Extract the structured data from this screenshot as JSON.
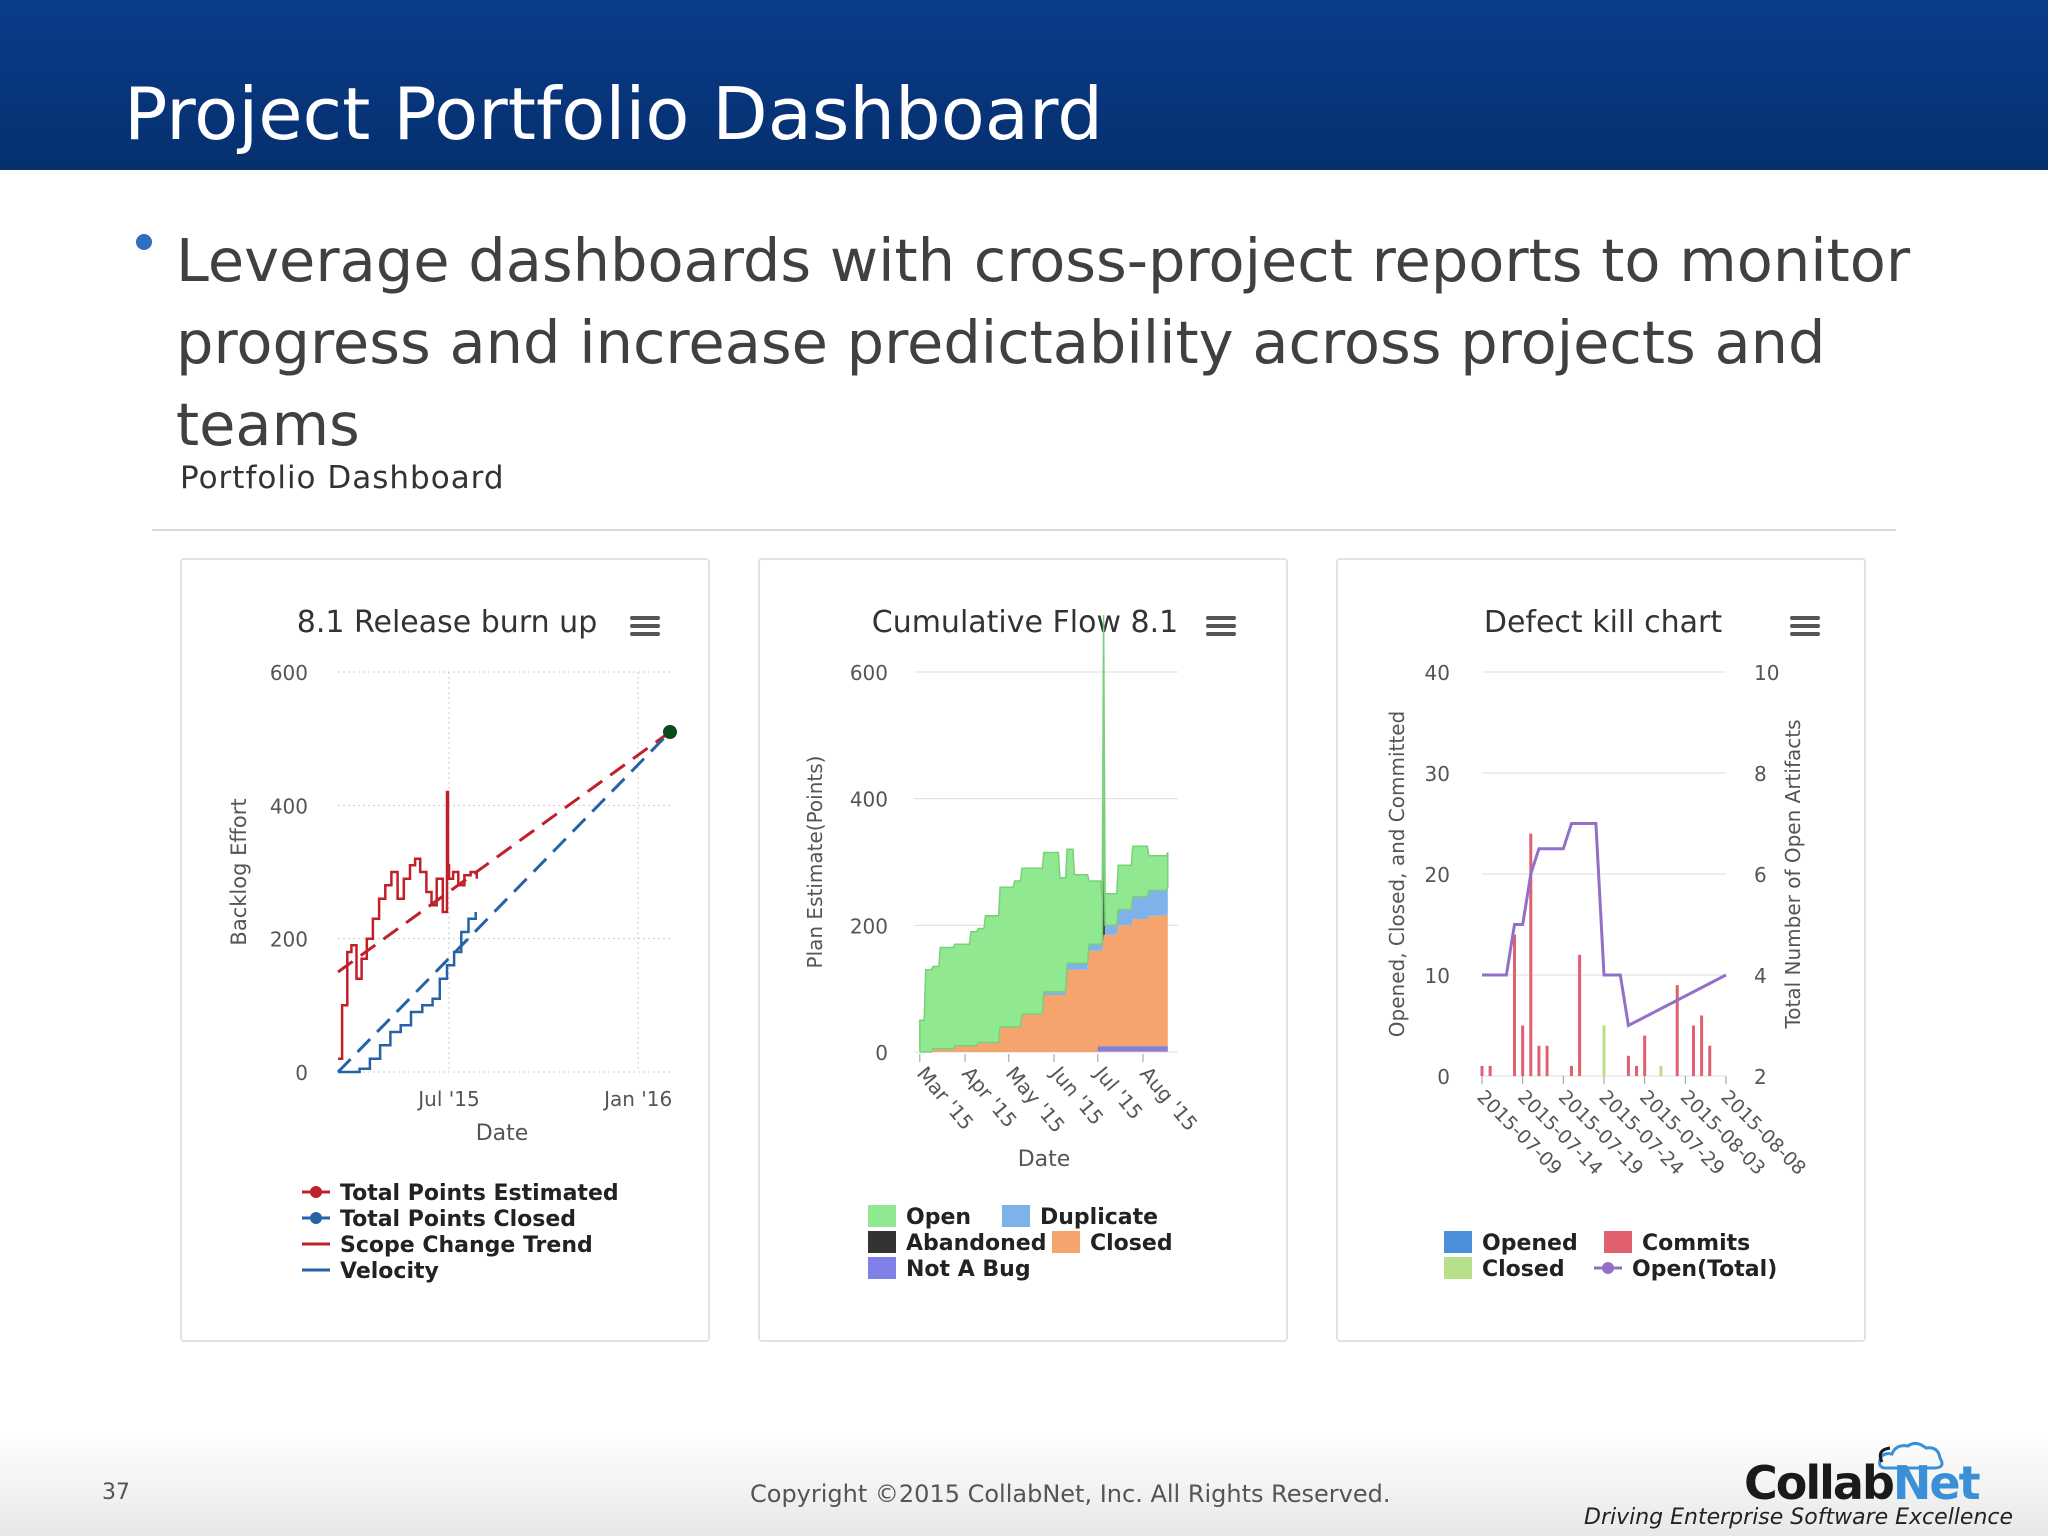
{
  "slide": {
    "title": "Project Portfolio Dashboard",
    "bullet": "Leverage dashboards with cross-project reports to monitor progress and increase predictability across projects and teams",
    "dashboard_title": "Portfolio Dashboard"
  },
  "footer": {
    "page_number": "37",
    "copyright": "Copyright ©2015 CollabNet, Inc. All Rights Reserved.",
    "logo_main": "Collab",
    "logo_accent": "Net",
    "tagline": "Driving Enterprise Software Excellence"
  },
  "colors": {
    "title_bar": "#05306f",
    "red": "#c0202a",
    "blue": "#2563a6",
    "green": "#90e890",
    "orange": "#f4a46c",
    "lightblue": "#7fb2ea",
    "purple": "#9370c8",
    "notabug": "#7e80e8",
    "commits": "#e06070",
    "closed_bar": "#b8e08a"
  },
  "chart_data": [
    {
      "type": "line",
      "title": "8.1 Release burn up",
      "xlabel": "Date",
      "ylabel": "Backlog Effort",
      "x_ticks": [
        "Jul '15",
        "Jan '16"
      ],
      "y_ticks": [
        0,
        200,
        400,
        600
      ],
      "ylim": [
        0,
        600
      ],
      "x_range": [
        "2015-03-15",
        "2016-02-01"
      ],
      "series": [
        {
          "name": "Total Points Estimated",
          "style": "solid",
          "color": "#c0202a",
          "x": [
            "2015-03-15",
            "2015-03-19",
            "2015-03-24",
            "2015-03-28",
            "2015-04-02",
            "2015-04-07",
            "2015-04-12",
            "2015-04-18",
            "2015-04-24",
            "2015-04-30",
            "2015-05-06",
            "2015-05-12",
            "2015-05-18",
            "2015-05-24",
            "2015-05-29",
            "2015-06-03",
            "2015-06-09",
            "2015-06-14",
            "2015-06-19",
            "2015-06-25",
            "2015-06-29",
            "2015-06-30",
            "2015-07-01",
            "2015-07-05",
            "2015-07-10",
            "2015-07-16",
            "2015-07-22",
            "2015-07-28"
          ],
          "values": [
            20,
            100,
            180,
            190,
            140,
            170,
            200,
            230,
            260,
            280,
            300,
            260,
            290,
            310,
            320,
            300,
            270,
            250,
            290,
            240,
            420,
            310,
            290,
            300,
            280,
            295,
            300,
            290
          ]
        },
        {
          "name": "Total Points Closed",
          "style": "solid",
          "color": "#2563a6",
          "x": [
            "2015-03-15",
            "2015-04-05",
            "2015-04-15",
            "2015-04-25",
            "2015-05-05",
            "2015-05-15",
            "2015-05-25",
            "2015-06-05",
            "2015-06-15",
            "2015-06-22",
            "2015-06-29",
            "2015-07-06",
            "2015-07-13",
            "2015-07-20",
            "2015-07-27"
          ],
          "values": [
            0,
            5,
            20,
            40,
            60,
            70,
            90,
            100,
            110,
            140,
            160,
            180,
            210,
            230,
            240
          ]
        },
        {
          "name": "Scope Change Trend",
          "style": "dashed",
          "color": "#c0202a",
          "x": [
            "2015-03-15",
            "2016-02-01"
          ],
          "values": [
            150,
            510
          ]
        },
        {
          "name": "Velocity",
          "style": "dashed",
          "color": "#2563a6",
          "x": [
            "2015-03-15",
            "2016-02-01"
          ],
          "values": [
            0,
            510
          ]
        }
      ],
      "legend": [
        "Total Points Estimated",
        "Total Points Closed",
        "Scope Change Trend",
        "Velocity"
      ],
      "legend_position": "bottom"
    },
    {
      "type": "area",
      "title": "Cumulative Flow 8.1",
      "xlabel": "Date",
      "ylabel": "Plan Estimate(Points)",
      "x_ticks": [
        "Mar '15",
        "Apr '15",
        "May '15",
        "Jun '15",
        "Jul '15",
        "Aug '15"
      ],
      "y_ticks": [
        0,
        200,
        400,
        600
      ],
      "ylim": [
        0,
        600
      ],
      "x_range": [
        "2015-02-25",
        "2015-08-25"
      ],
      "series": [
        {
          "name": "Closed",
          "color": "#f4a46c",
          "x": [
            "2015-03-01",
            "2015-03-10",
            "2015-03-25",
            "2015-04-10",
            "2015-04-25",
            "2015-05-10",
            "2015-05-25",
            "2015-06-10",
            "2015-06-25",
            "2015-07-05",
            "2015-07-15",
            "2015-07-25",
            "2015-08-05",
            "2015-08-18"
          ],
          "values": [
            0,
            5,
            10,
            15,
            40,
            60,
            90,
            130,
            160,
            185,
            200,
            210,
            215,
            220
          ]
        },
        {
          "name": "Abandoned",
          "color": "#333333",
          "x": [
            "2015-03-01",
            "2015-07-04",
            "2015-07-05",
            "2015-07-06",
            "2015-08-18"
          ],
          "values": [
            0,
            0,
            190,
            0,
            0
          ]
        },
        {
          "name": "Duplicate",
          "color": "#7fb2ea",
          "x": [
            "2015-03-01",
            "2015-05-25",
            "2015-06-10",
            "2015-07-05",
            "2015-07-15",
            "2015-07-25",
            "2015-08-05",
            "2015-08-18"
          ],
          "values": [
            0,
            5,
            10,
            15,
            25,
            35,
            40,
            40
          ]
        },
        {
          "name": "Open",
          "color": "#90e890",
          "x": [
            "2015-03-01",
            "2015-03-05",
            "2015-03-15",
            "2015-03-25",
            "2015-04-05",
            "2015-04-15",
            "2015-04-25",
            "2015-05-05",
            "2015-05-15",
            "2015-05-25",
            "2015-06-05",
            "2015-06-15",
            "2015-06-25",
            "2015-07-04",
            "2015-07-05",
            "2015-07-06",
            "2015-07-15",
            "2015-07-25",
            "2015-08-05",
            "2015-08-18"
          ],
          "values": [
            50,
            130,
            160,
            160,
            180,
            200,
            220,
            230,
            230,
            220,
            180,
            140,
            100,
            70,
            300,
            50,
            70,
            80,
            55,
            55
          ]
        },
        {
          "name": "Not A Bug",
          "color": "#7e80e8",
          "x": [
            "2015-07-01",
            "2015-08-18"
          ],
          "values": [
            5,
            5
          ]
        }
      ],
      "legend": [
        "Open",
        "Duplicate",
        "Abandoned",
        "Closed",
        "Not A Bug"
      ],
      "legend_position": "bottom"
    },
    {
      "type": "bar",
      "title": "Defect kill chart",
      "xlabel": "",
      "ylabel": "Opened, Closed, and Committed",
      "y2label": "Total Number of Open Artifacts",
      "x_ticks": [
        "2015-07-09",
        "2015-07-14",
        "2015-07-19",
        "2015-07-24",
        "2015-07-29",
        "2015-08-03",
        "2015-08-08"
      ],
      "y_ticks": [
        0,
        10,
        20,
        30,
        40
      ],
      "y2_ticks": [
        2,
        4,
        6,
        8,
        10
      ],
      "ylim": [
        0,
        40
      ],
      "y2lim": [
        2,
        10
      ],
      "x_range": [
        "2015-07-09",
        "2015-08-08"
      ],
      "bars": [
        {
          "series": "Commits",
          "color": "#e06070",
          "x": [
            "2015-07-09",
            "2015-07-10",
            "2015-07-13",
            "2015-07-14",
            "2015-07-15",
            "2015-07-16",
            "2015-07-17",
            "2015-07-20",
            "2015-07-21",
            "2015-07-27",
            "2015-07-28",
            "2015-07-29",
            "2015-08-02",
            "2015-08-04",
            "2015-08-05",
            "2015-08-06"
          ],
          "values": [
            1,
            1,
            14,
            5,
            24,
            3,
            3,
            1,
            12,
            2,
            1,
            4,
            9,
            5,
            6,
            3
          ]
        },
        {
          "series": "Closed",
          "color": "#b8e08a",
          "x": [
            "2015-07-24",
            "2015-07-31"
          ],
          "values": [
            5,
            1
          ]
        }
      ],
      "line": {
        "series": "Open(Total)",
        "color": "#9370c8",
        "axis": "right",
        "x": [
          "2015-07-09",
          "2015-07-12",
          "2015-07-13",
          "2015-07-14",
          "2015-07-15",
          "2015-07-16",
          "2015-07-19",
          "2015-07-20",
          "2015-07-23",
          "2015-07-24",
          "2015-07-26",
          "2015-07-27",
          "2015-08-08"
        ],
        "values": [
          4,
          4,
          5,
          5,
          6,
          6.5,
          6.5,
          7,
          7,
          4,
          4,
          3,
          4
        ]
      },
      "legend": [
        "Opened",
        "Commits",
        "Closed",
        "Open(Total)"
      ],
      "legend_position": "bottom"
    }
  ]
}
